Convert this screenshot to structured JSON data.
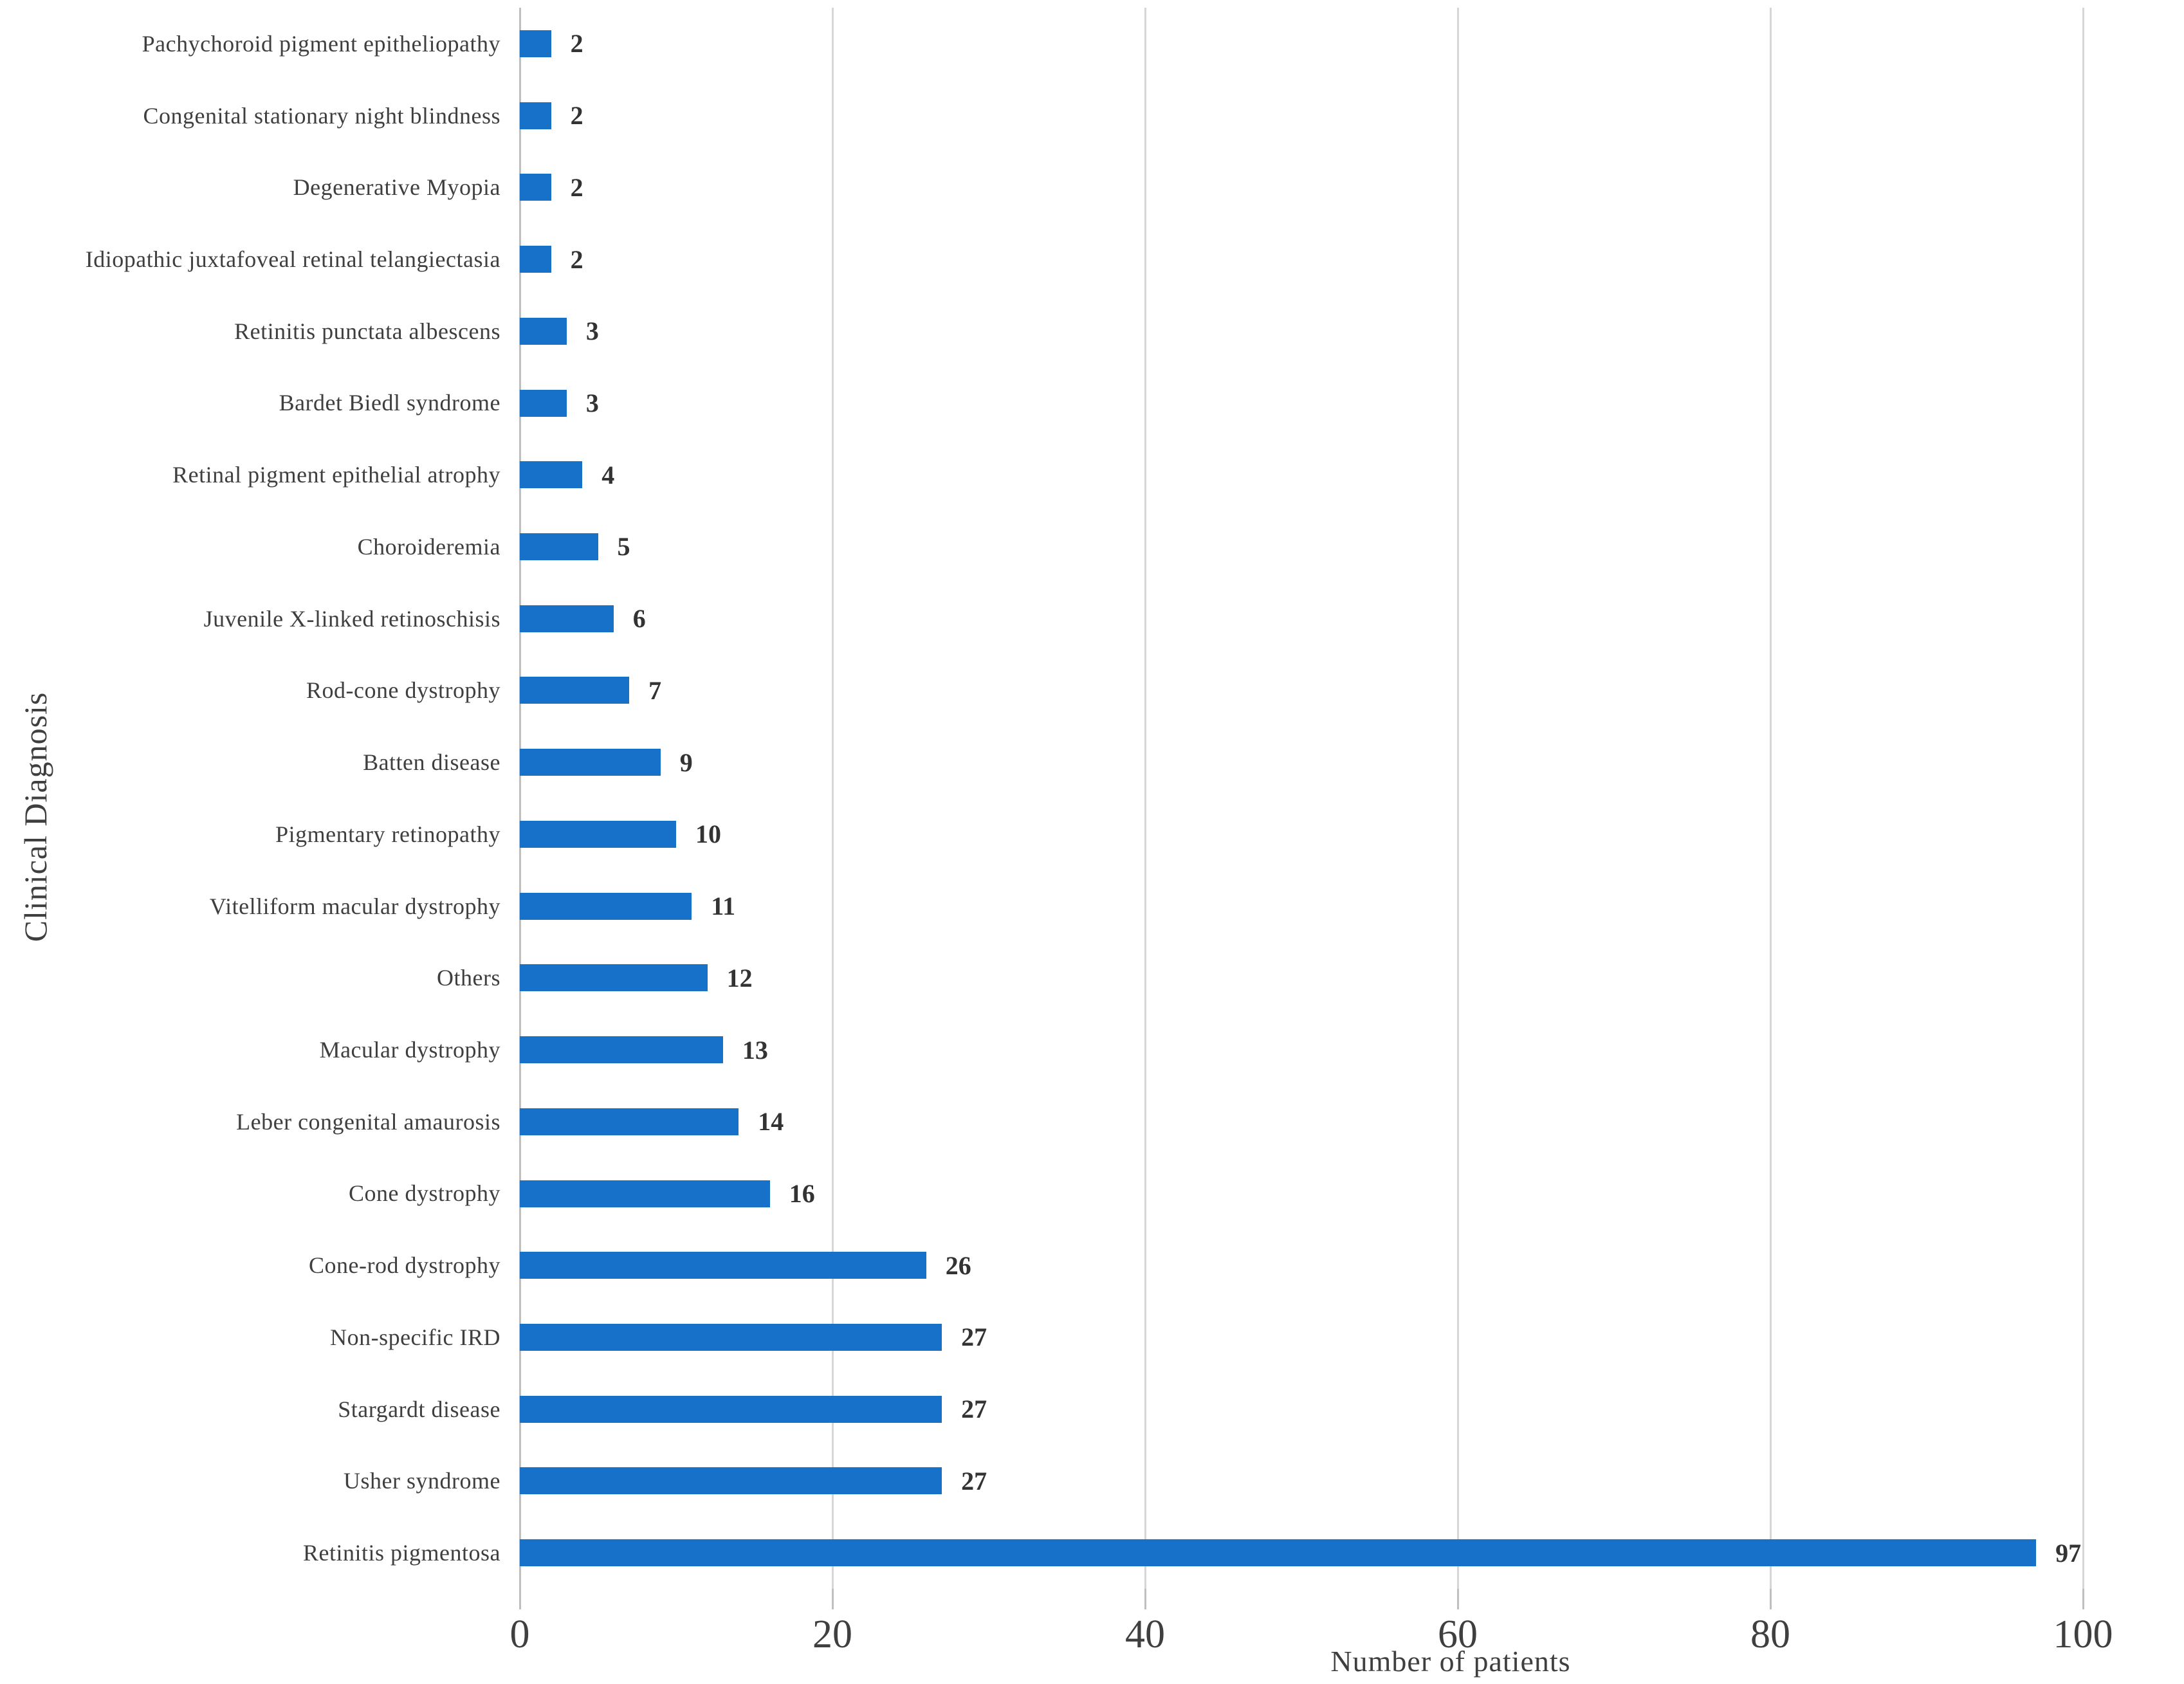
{
  "chart_data": {
    "type": "bar",
    "orientation": "horizontal",
    "title": "",
    "xlabel": "Number of patients",
    "ylabel": "Clinical Diagnosis",
    "xlim": [
      0,
      100
    ],
    "x_ticks": [
      "0",
      "20",
      "40",
      "60",
      "80",
      "100"
    ],
    "grid": "vertical",
    "legend": "none",
    "bar_color": "#1771c8",
    "gridline_color": "#d6d6d6",
    "axis_color": "#bfbfbf",
    "text_color": "#3f3f3f",
    "categories": [
      "Pachychoroid pigment epitheliopathy",
      "Congenital stationary night blindness",
      "Degenerative Myopia",
      "Idiopathic juxtafoveal retinal telangiectasia",
      "Retinitis punctata albescens",
      "Bardet Biedl syndrome",
      "Retinal pigment epithelial atrophy",
      "Choroideremia",
      "Juvenile X-linked retinoschisis",
      "Rod-cone dystrophy",
      "Batten disease",
      "Pigmentary retinopathy",
      "Vitelliform macular dystrophy",
      "Others",
      "Macular dystrophy",
      "Leber congenital amaurosis",
      "Cone dystrophy",
      "Cone-rod dystrophy",
      "Non-specific IRD",
      "Stargardt disease",
      "Usher syndrome",
      "Retinitis pigmentosa"
    ],
    "values": [
      2,
      2,
      2,
      2,
      3,
      3,
      4,
      5,
      6,
      7,
      9,
      10,
      11,
      12,
      13,
      14,
      16,
      26,
      27,
      27,
      27,
      97
    ]
  }
}
